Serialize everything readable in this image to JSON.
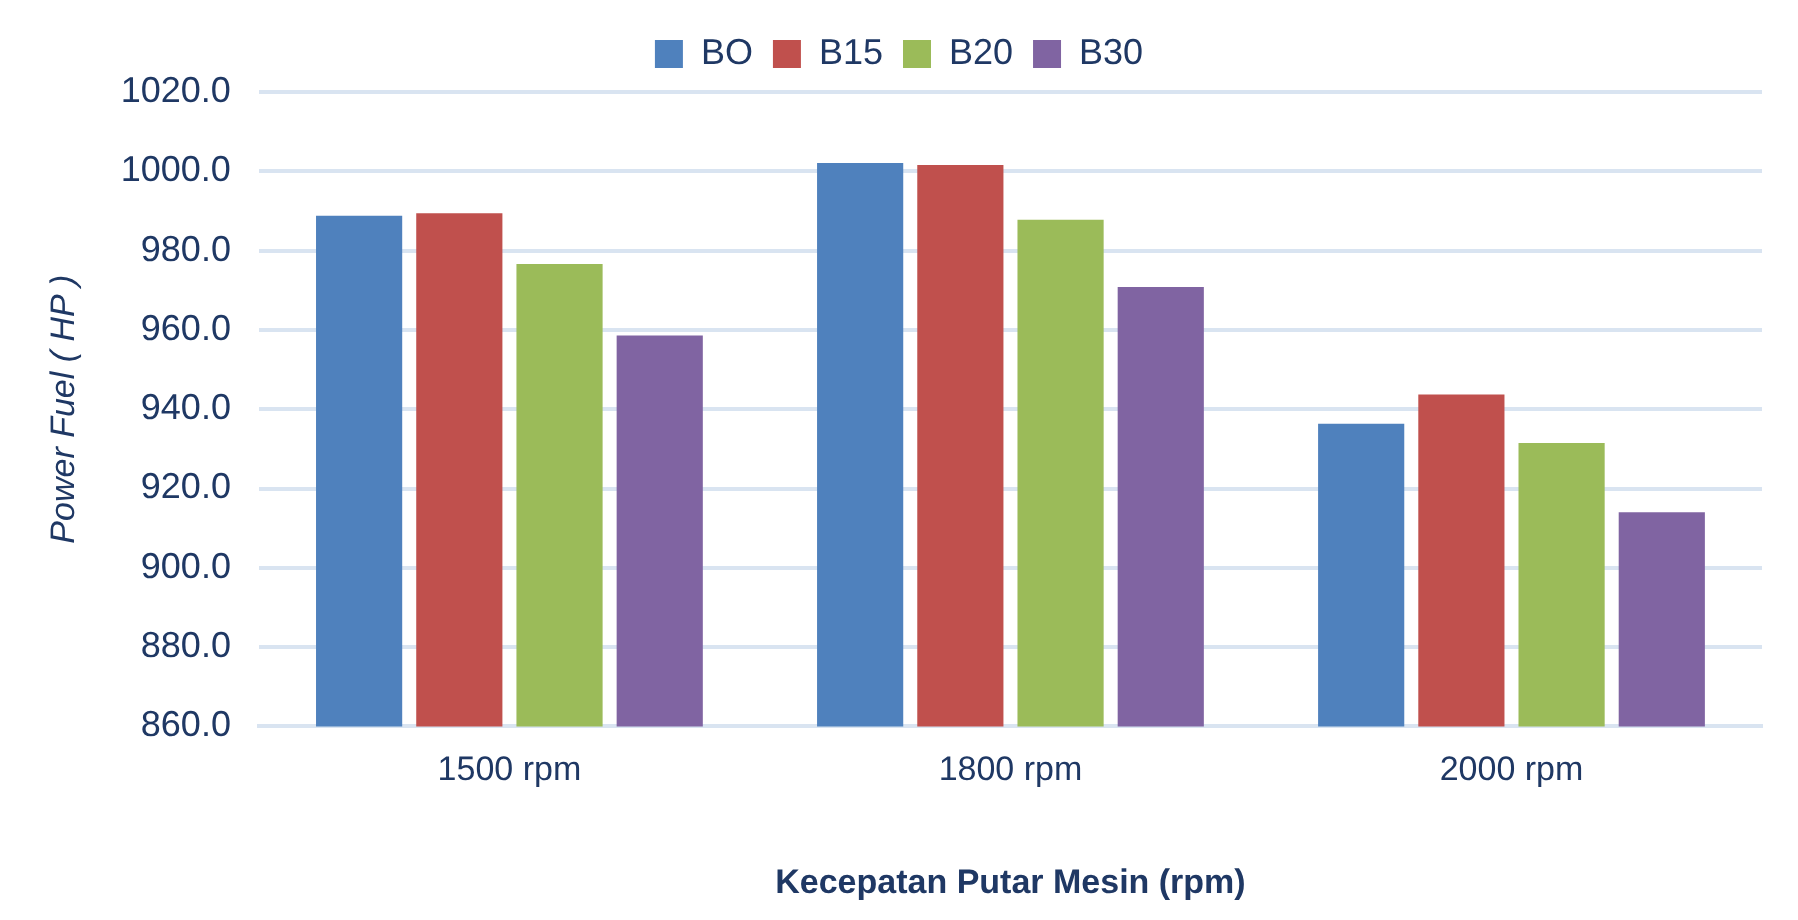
{
  "chart_data": {
    "type": "bar",
    "xlabel": "Kecepatan Putar Mesin (rpm)",
    "ylabel": "Power Fuel ( HP )",
    "categories": [
      "1500 rpm",
      "1800 rpm",
      "2000 rpm"
    ],
    "series": [
      {
        "name": "BO",
        "color": "#4f81bd",
        "values": [
          988.8,
          1002.1,
          936.3
        ]
      },
      {
        "name": "B15",
        "color": "#c0504d",
        "values": [
          989.4,
          1001.6,
          943.7
        ]
      },
      {
        "name": "B20",
        "color": "#9bbb59",
        "values": [
          976.6,
          987.8,
          931.5
        ]
      },
      {
        "name": "B30",
        "color": "#8064a2",
        "values": [
          958.6,
          970.8,
          914.0
        ]
      }
    ],
    "ylim": [
      860,
      1020
    ],
    "yticks": [
      {
        "value": 860,
        "label": "860.0"
      },
      {
        "value": 880,
        "label": "880.0"
      },
      {
        "value": 900,
        "label": "900.0"
      },
      {
        "value": 920,
        "label": "920.0"
      },
      {
        "value": 940,
        "label": "940.0"
      },
      {
        "value": 960,
        "label": "960.0"
      },
      {
        "value": 980,
        "label": "980.0"
      },
      {
        "value": 1000,
        "label": "1000.0"
      },
      {
        "value": 1020,
        "label": "1020.0"
      }
    ],
    "grid": "y",
    "legend": "top"
  }
}
